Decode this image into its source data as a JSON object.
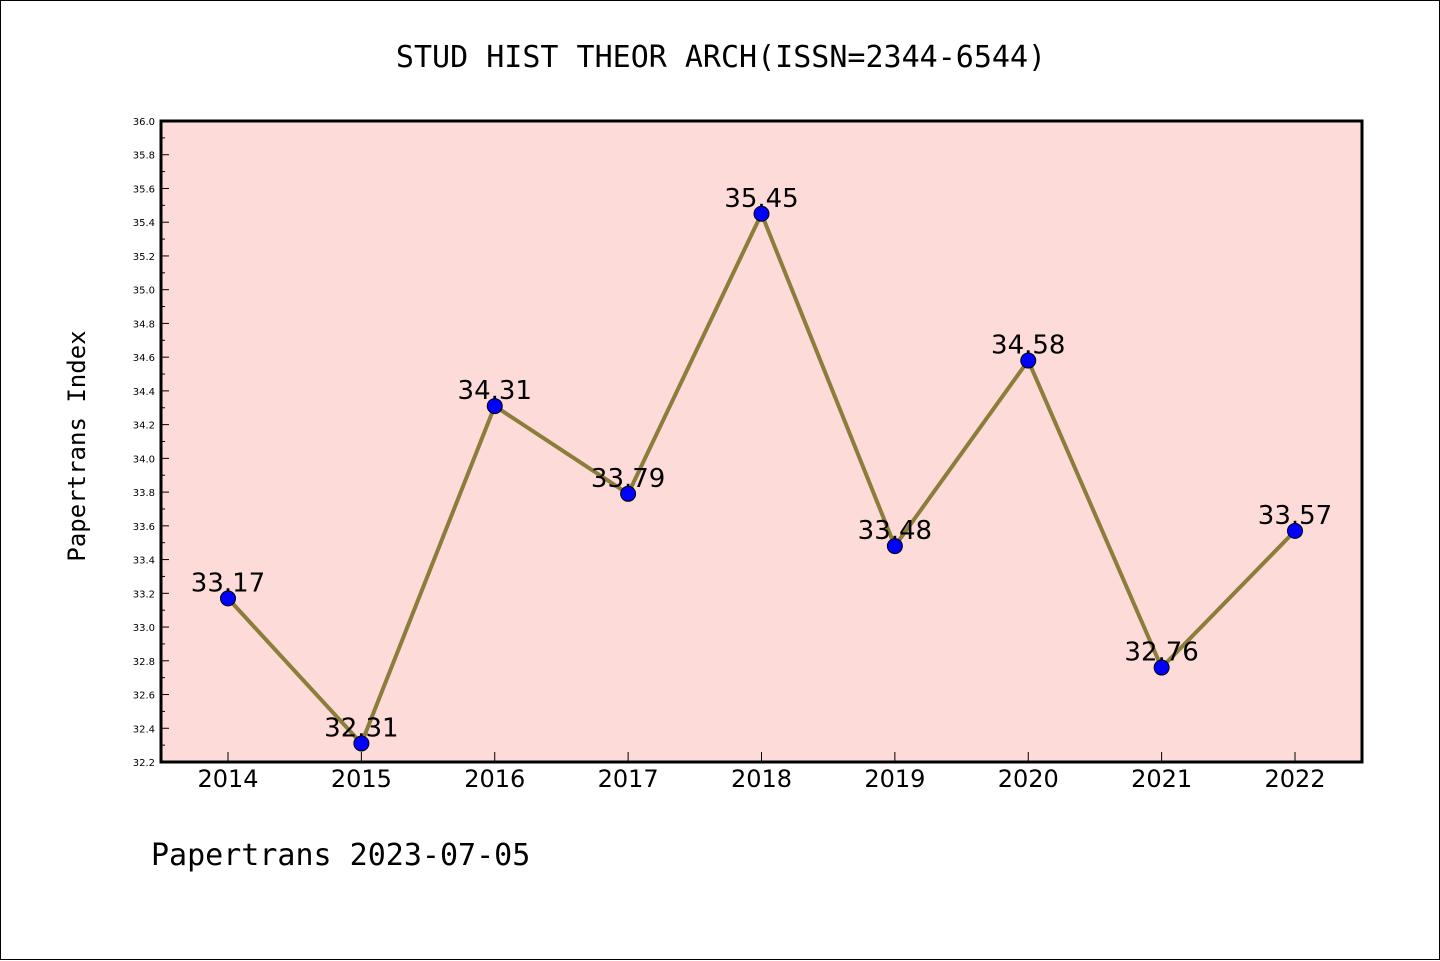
{
  "chart_data": {
    "type": "line",
    "title": "STUD HIST THEOR ARCH(ISSN=2344-6544)",
    "ylabel": "Papertrans Index",
    "xlabel": "",
    "footer": "Papertrans 2023-07-05",
    "categories": [
      "2014",
      "2015",
      "2016",
      "2017",
      "2018",
      "2019",
      "2020",
      "2021",
      "2022"
    ],
    "values": [
      33.17,
      32.31,
      34.31,
      33.79,
      35.45,
      33.48,
      34.58,
      32.76,
      33.57
    ],
    "data_labels": [
      "33.17",
      "32.31",
      "34.31",
      "33.79",
      "35.45",
      "33.48",
      "34.58",
      "32.76",
      "33.57"
    ],
    "ylim": [
      32.2,
      36.0
    ],
    "ytick_step": 0.2,
    "ytick_decimals": 1,
    "grid": false,
    "colors": {
      "plot_background": "#fddbd9",
      "line": "#8b7d3a",
      "marker": "#0000ff",
      "marker_edge": "#000000"
    }
  }
}
